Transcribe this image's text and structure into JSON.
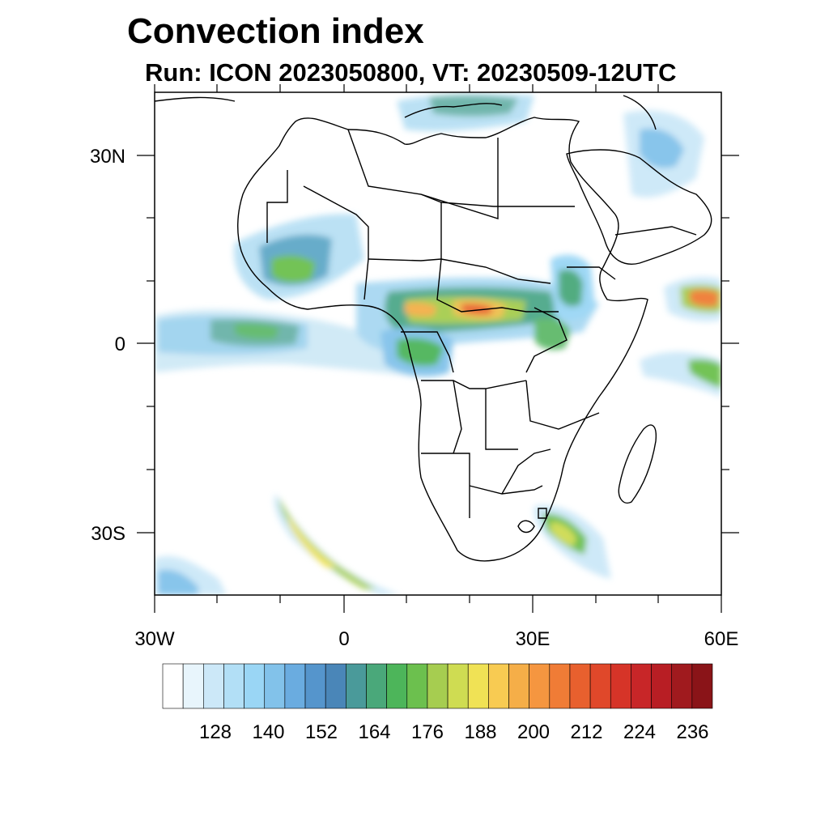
{
  "title": "Convection index",
  "subtitle": "Run: ICON 2023050800,  VT: 20230509-12UTC",
  "axes": {
    "lat_labels": [
      "30N",
      "0",
      "30S"
    ],
    "lon_labels": [
      "30W",
      "0",
      "30E",
      "60E"
    ]
  },
  "colorbar": {
    "colors": [
      "#ffffff",
      "#e8f5fc",
      "#cce8f8",
      "#b2dff6",
      "#9ad6f5",
      "#82c2ea",
      "#6aace0",
      "#5595cc",
      "#4a86b8",
      "#4a9a9a",
      "#4aa87a",
      "#4db55a",
      "#6cc04e",
      "#a6cd50",
      "#cfdc52",
      "#f0e255",
      "#f8cb52",
      "#f5ae48",
      "#f59640",
      "#f07c36",
      "#e8602e",
      "#e0482a",
      "#d63428",
      "#c82628",
      "#b81e24",
      "#a01a1e",
      "#8a1418"
    ],
    "labels": [
      "128",
      "140",
      "152",
      "164",
      "176",
      "188",
      "200",
      "212",
      "224",
      "236"
    ]
  },
  "map": {
    "extent": {
      "lon_min": -30,
      "lon_max": 60,
      "lat_min": -40,
      "lat_max": 40
    },
    "region": "Africa"
  }
}
